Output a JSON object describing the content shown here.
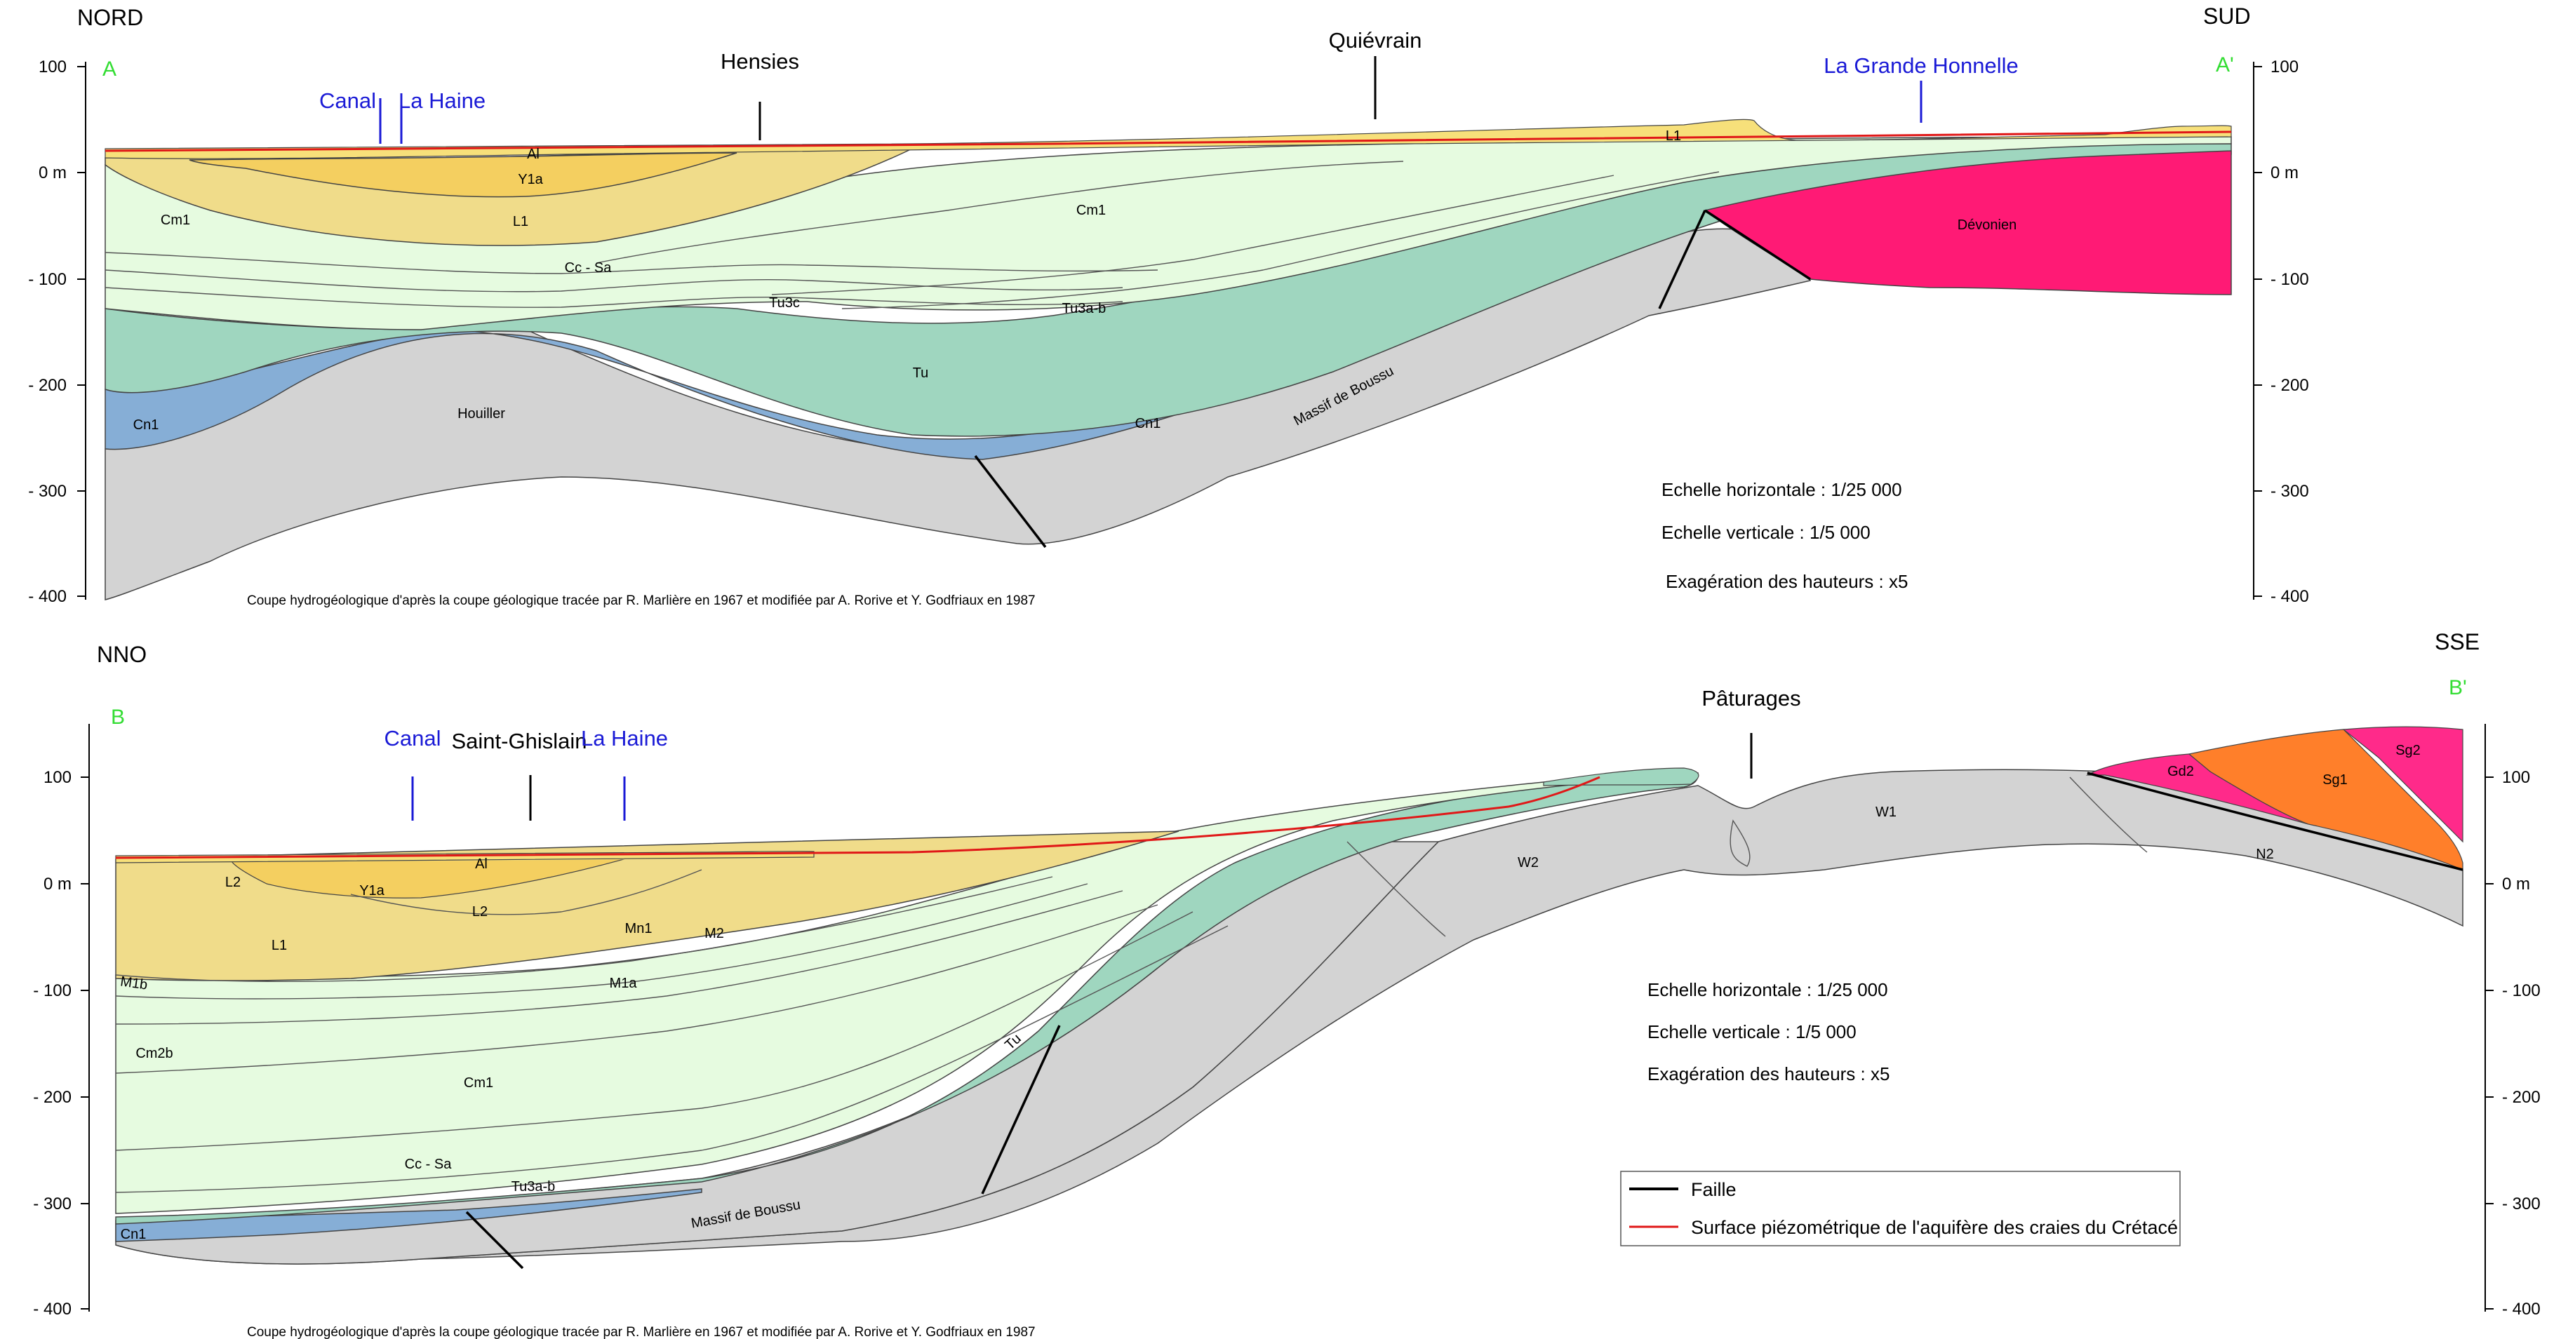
{
  "colors": {
    "alluvium": "#f7e07a",
    "tertiary_light": "#f0dc8a",
    "tertiary_dark": "#f4cf60",
    "chalk": "#e6fbe0",
    "tu": "#9fd6bf",
    "cn1": "#86aed6",
    "basement": "#d3d3d3",
    "devonien": "#ff1a75",
    "gd2": "#ff2a8a",
    "sg1": "#ff7f2a",
    "fault": "#000000",
    "piezo": "#e01818",
    "corner": "#33dd33",
    "water_label": "#1a1ad6"
  },
  "section_a": {
    "left_orientation": "NORD",
    "right_orientation": "SUD",
    "start_label": "A",
    "end_label": "A'",
    "places": [
      "Hensies",
      "Quiévrain"
    ],
    "waterways": [
      "Canal",
      "La Haine",
      "La Grande Honnelle"
    ],
    "y_ticks_left": [
      "100",
      "0 m",
      "- 100",
      "- 200",
      "- 300",
      "- 400"
    ],
    "y_ticks_right": [
      "100",
      "0 m",
      "- 100",
      "- 200",
      "- 300",
      "- 400"
    ],
    "units": [
      "Al",
      "Y1a",
      "L1",
      "Cm1",
      "Cc - Sa",
      "Tu3c",
      "Tu3a-b",
      "Tu",
      "Cn1",
      "Houiller",
      "Massif de Boussu",
      "Dévonien"
    ],
    "scale_lines": [
      "Echelle horizontale : 1/25 000",
      "Echelle verticale : 1/5 000",
      "Exagération des hauteurs : x5"
    ],
    "caption": "Coupe hydrogéologique d'après la coupe géologique tracée par R. Marlière en 1967 et modifiée par A. Rorive et Y. Godfriaux en 1987"
  },
  "section_b": {
    "left_orientation": "NNO",
    "right_orientation": "SSE",
    "start_label": "B",
    "end_label": "B'",
    "places": [
      "Saint-Ghislain",
      "Pâturages"
    ],
    "waterways": [
      "Canal",
      "La Haine"
    ],
    "y_ticks_left": [
      "100",
      "0 m",
      "- 100",
      "- 200",
      "- 300",
      "- 400"
    ],
    "y_ticks_right": [
      "100",
      "0 m",
      "- 100",
      "- 200",
      "- 300",
      "- 400"
    ],
    "units": [
      "Al",
      "L2",
      "Y1a",
      "L1",
      "M1b",
      "Mn1",
      "M2",
      "M1a",
      "Cm2b",
      "Cm1",
      "Cc - Sa",
      "Tu3a-b",
      "Tu",
      "Cn1",
      "Massif de Boussu",
      "W2",
      "W1",
      "N2",
      "Gd2",
      "Sg1",
      "Sg2"
    ],
    "scale_lines": [
      "Echelle horizontale : 1/25 000",
      "Echelle verticale : 1/5 000",
      "Exagération des hauteurs : x5"
    ],
    "caption": "Coupe hydrogéologique d'après la coupe géologique tracée par R. Marlière en 1967 et modifiée par A. Rorive et Y. Godfriaux en 1987"
  },
  "legend": {
    "fault_label": "Faille",
    "piezo_label": "Surface piézométrique de l'aquifère des craies du Crétacé"
  }
}
